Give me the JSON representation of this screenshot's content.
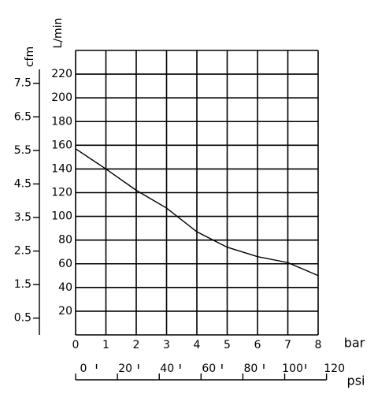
{
  "chart_data": {
    "type": "line",
    "x": [
      0,
      1,
      2,
      3,
      4,
      5,
      6,
      7,
      8
    ],
    "series": [
      {
        "color": "#000000",
        "values": [
          157,
          140,
          122,
          107,
          87,
          74,
          66,
          61,
          50
        ]
      }
    ],
    "xlim": [
      0,
      8
    ],
    "xticks": [
      0,
      1,
      2,
      3,
      4,
      5,
      6,
      7,
      8
    ],
    "xlabel": "bar",
    "ylim": [
      0,
      240
    ],
    "yticks": [
      20,
      40,
      60,
      80,
      100,
      120,
      140,
      160,
      180,
      200,
      220
    ],
    "ylabel": "L/min",
    "y2lim": [
      0,
      8.48
    ],
    "y2ticks": [
      0.5,
      1.5,
      2.5,
      3.5,
      4.5,
      5.5,
      6.5,
      7.5
    ],
    "y2label": "cfm",
    "x2lim": [
      0,
      116
    ],
    "x2ticks": [
      0,
      20,
      40,
      60,
      80,
      100,
      120
    ],
    "x2minorticks": [
      10,
      30,
      50,
      70,
      90,
      110
    ],
    "x2label": "psi",
    "grid": true
  }
}
